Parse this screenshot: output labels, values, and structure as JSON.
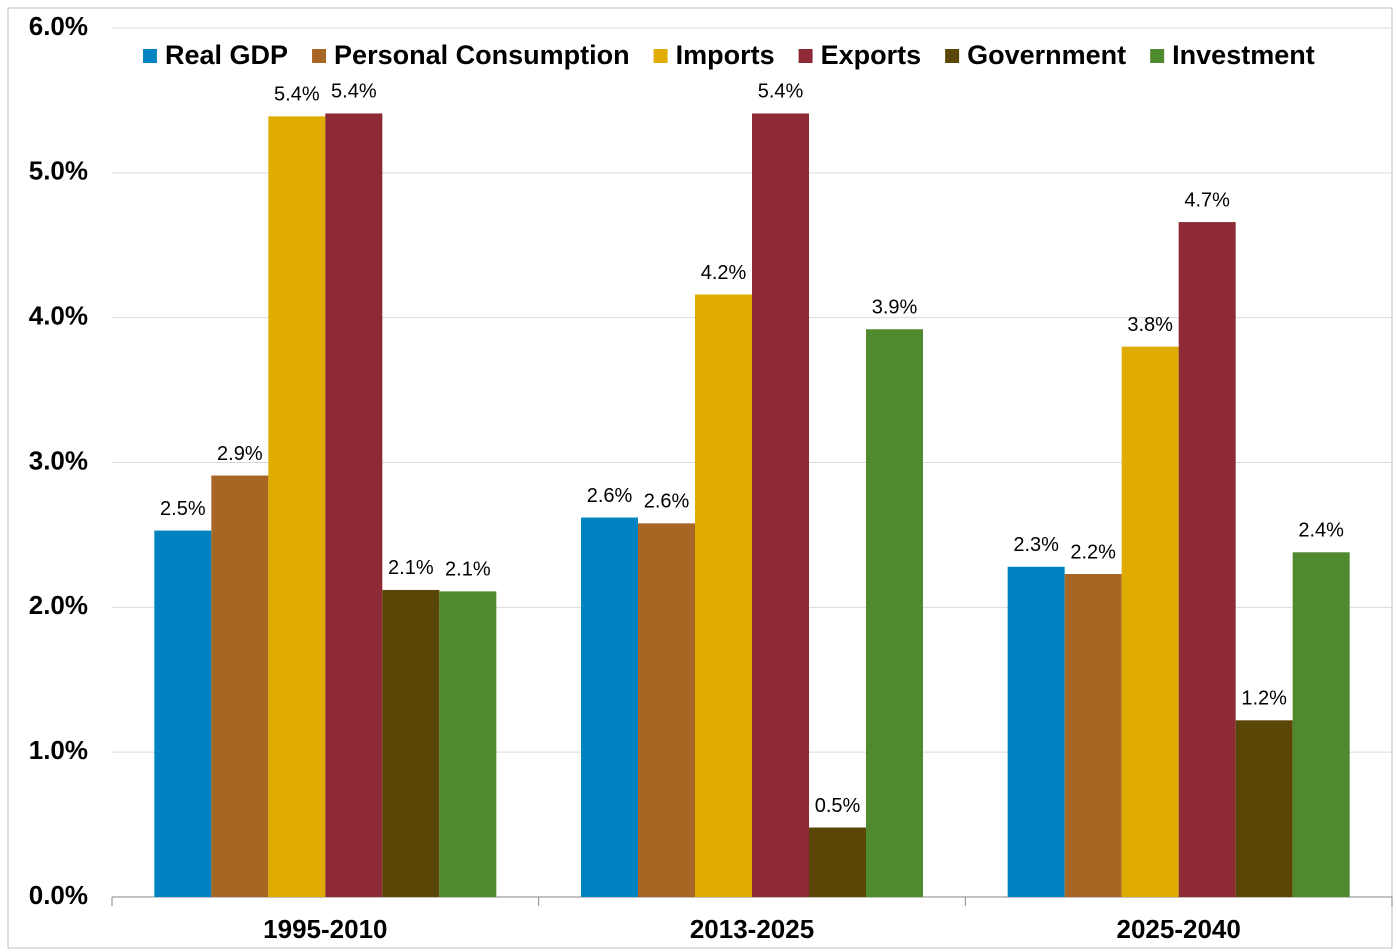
{
  "chart_data": {
    "type": "bar",
    "categories": [
      "1995-2010",
      "2013-2025",
      "2025-2040"
    ],
    "series": [
      {
        "name": "Real GDP",
        "color": "#0083c0",
        "values": [
          2.53,
          2.62,
          2.28
        ],
        "value_labels": [
          "2.5%",
          "2.6%",
          "2.3%"
        ]
      },
      {
        "name": "Personal Consumption",
        "color": "#a86625",
        "values": [
          2.91,
          2.58,
          2.23
        ],
        "value_labels": [
          "2.9%",
          "2.6%",
          "2.2%"
        ]
      },
      {
        "name": "Imports",
        "color": "#e0ac00",
        "values": [
          5.39,
          4.16,
          3.8
        ],
        "value_labels": [
          "5.4%",
          "4.2%",
          "3.8%"
        ]
      },
      {
        "name": "Exports",
        "color": "#8e2a36",
        "values": [
          5.41,
          5.41,
          4.66
        ],
        "value_labels": [
          "5.4%",
          "5.4%",
          "4.7%"
        ]
      },
      {
        "name": "Government",
        "color": "#5a4708",
        "values": [
          2.12,
          0.48,
          1.22
        ],
        "value_labels": [
          "2.1%",
          "0.5%",
          "1.2%"
        ]
      },
      {
        "name": "Investment",
        "color": "#4f8a2f",
        "values": [
          2.11,
          3.92,
          2.38
        ],
        "value_labels": [
          "2.1%",
          "3.9%",
          "2.4%"
        ]
      }
    ],
    "ylim": [
      0,
      6
    ],
    "yticks": [
      {
        "value": 0,
        "label": "0.0%"
      },
      {
        "value": 1,
        "label": "1.0%"
      },
      {
        "value": 2,
        "label": "2.0%"
      },
      {
        "value": 3,
        "label": "3.0%"
      },
      {
        "value": 4,
        "label": "4.0%"
      },
      {
        "value": 5,
        "label": "5.0%"
      },
      {
        "value": 6,
        "label": "6.0%"
      }
    ],
    "grid": true,
    "legend": "top"
  }
}
